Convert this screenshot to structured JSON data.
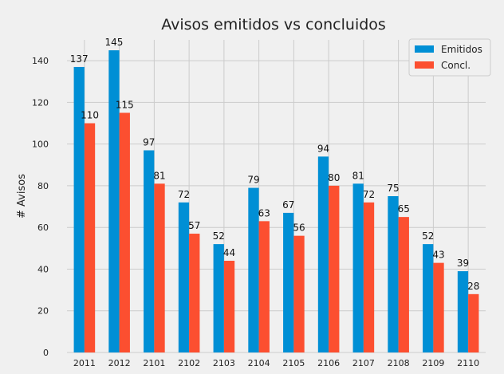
{
  "chart_data": {
    "type": "bar",
    "title": "Avisos emitidos vs concluidos",
    "xlabel": "",
    "ylabel": "# Avisos",
    "ylim": [
      0,
      150
    ],
    "yticks": [
      0,
      20,
      40,
      60,
      80,
      100,
      120,
      140
    ],
    "grid": true,
    "legend_position": "top-right",
    "categories": [
      "2011",
      "2012",
      "2101",
      "2102",
      "2103",
      "2104",
      "2105",
      "2106",
      "2107",
      "2108",
      "2109",
      "2110"
    ],
    "series": [
      {
        "name": "Emitidos",
        "color": "#008fd5",
        "values": [
          137,
          145,
          97,
          72,
          52,
          79,
          67,
          94,
          81,
          75,
          52,
          39
        ]
      },
      {
        "name": "Concl.",
        "color": "#fc4f30",
        "values": [
          110,
          115,
          81,
          57,
          44,
          63,
          56,
          80,
          72,
          65,
          43,
          28
        ]
      }
    ]
  }
}
